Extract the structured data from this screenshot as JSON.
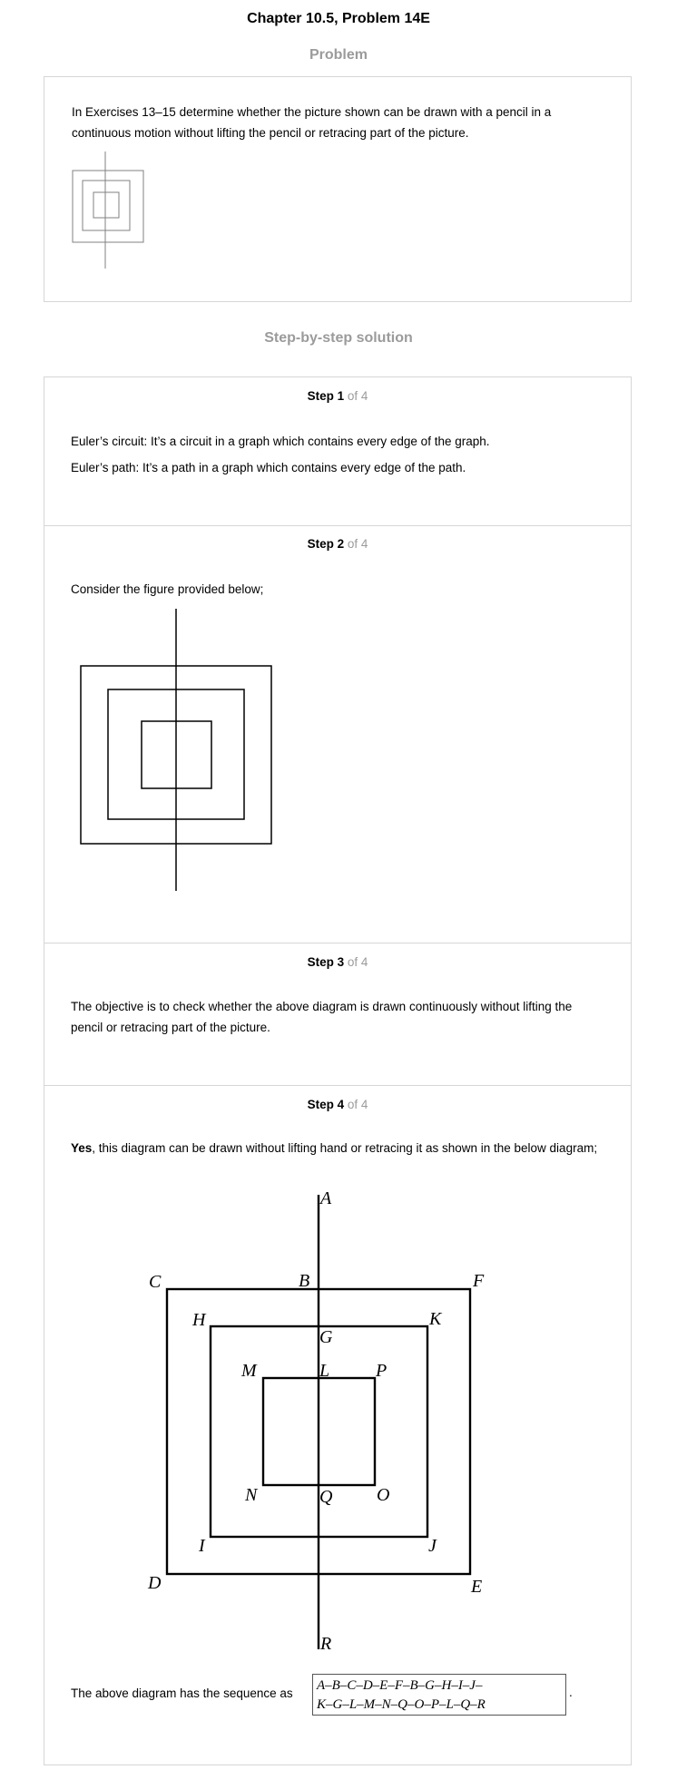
{
  "title": "Chapter 10.5, Problem 14E",
  "problem": {
    "heading": "Problem",
    "text": "In Exercises 13–15 determine whether the picture shown can be drawn with a pencil in a continuous motion without lifting the pencil or retracing part of the picture."
  },
  "solution": {
    "heading": "Step-by-step solution",
    "steps": [
      {
        "num": "Step 1",
        "of": " of 4",
        "lines": [
          "Euler’s circuit: It’s a circuit in a graph which contains every edge of the graph.",
          "Euler’s path: It’s a path in a graph which contains every edge of the path."
        ]
      },
      {
        "num": "Step 2",
        "of": " of 4",
        "text": "Consider the figure provided below;"
      },
      {
        "num": "Step 3",
        "of": " of 4",
        "text": "The objective is to check whether the above diagram is drawn continuously without lifting the pencil or retracing part of the picture."
      },
      {
        "num": "Step 4",
        "of": " of 4",
        "yes": "Yes",
        "text_rest": ", this diagram can be drawn without lifting hand or retracing it as shown in the below diagram;",
        "sequence_intro": "The above diagram has the sequence as",
        "sequence_line1": "A–B–C–D–E–F–B–G–H–I–J–",
        "sequence_line2": "K–G–L–M–N–Q–O–P–L–Q–R",
        "sequence_end": "."
      }
    ]
  },
  "graph_labels": {
    "A": "A",
    "B": "B",
    "C": "C",
    "D": "D",
    "E": "E",
    "F": "F",
    "G": "G",
    "H": "H",
    "I": "I",
    "J": "J",
    "K": "K",
    "L": "L",
    "M": "M",
    "N": "N",
    "O": "O",
    "P": "P",
    "Q": "Q",
    "R": "R"
  }
}
